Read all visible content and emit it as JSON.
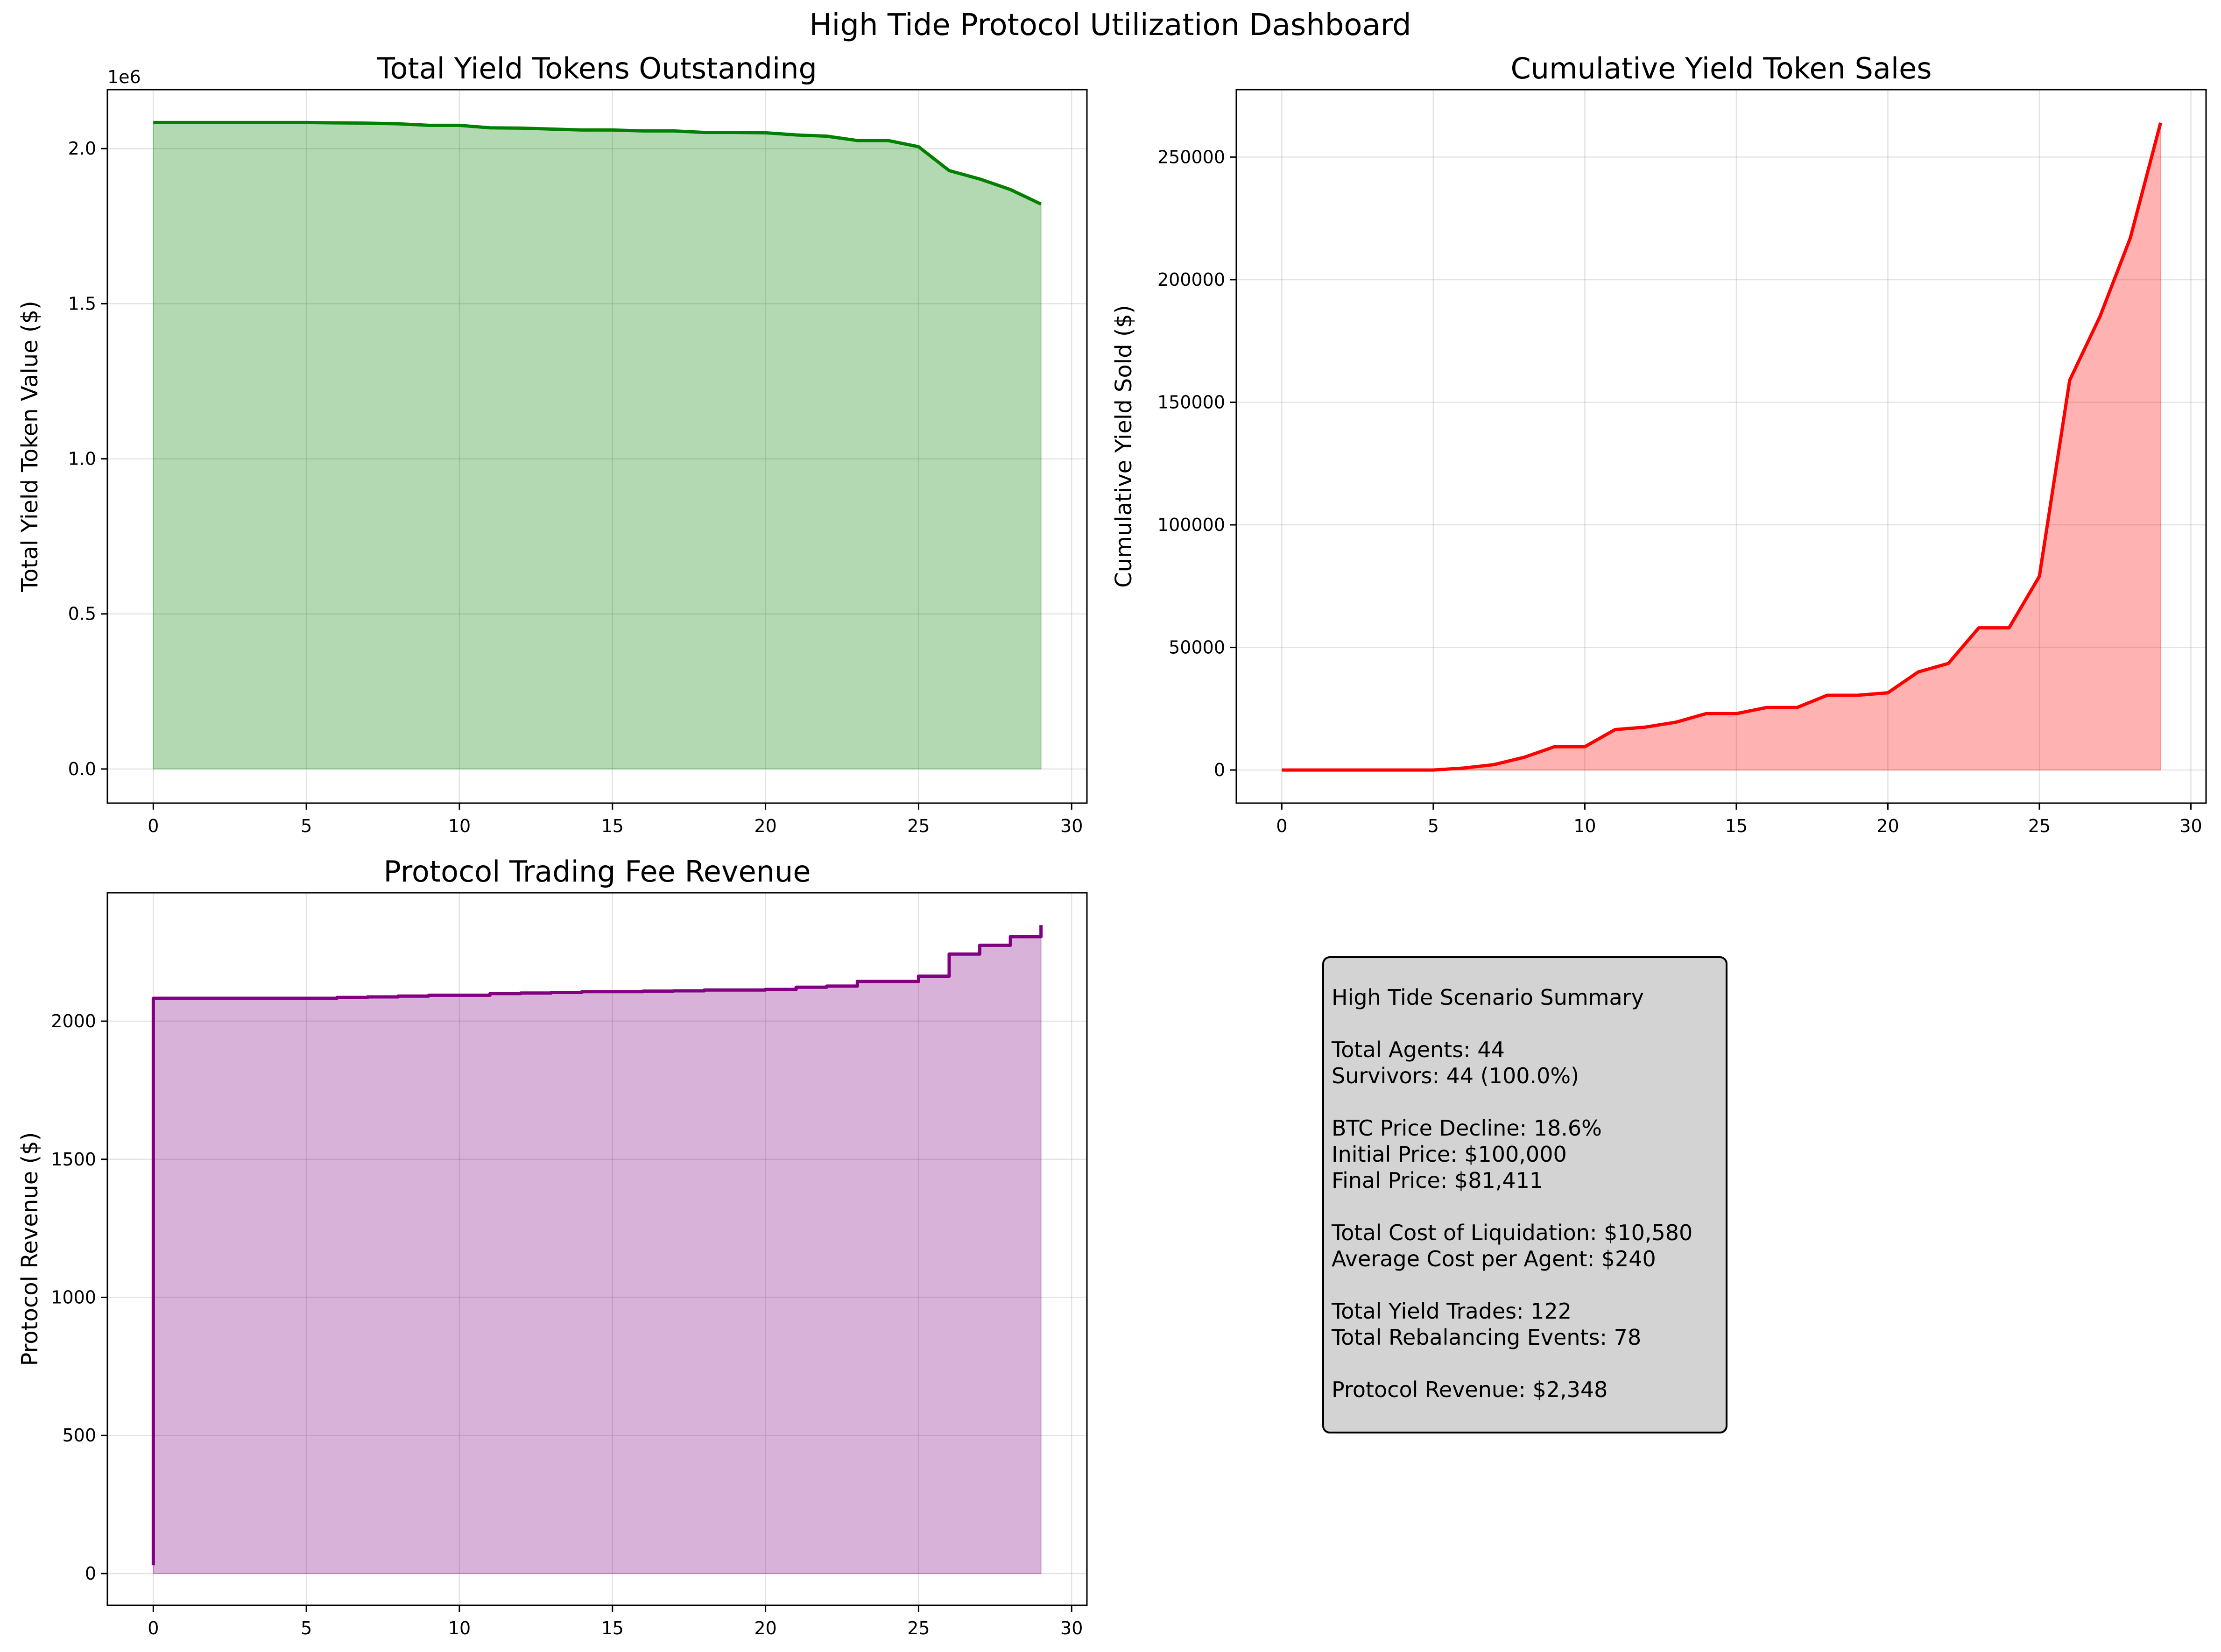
{
  "figure": {
    "suptitle": "High Tide Protocol Utilization Dashboard",
    "colors": {
      "green": "#008000",
      "red": "#ff0000",
      "purple": "#800080",
      "summary_bg": "#d3d3d3"
    }
  },
  "chart_data": [
    {
      "type": "area",
      "title": "Total Yield Tokens Outstanding",
      "xlabel": "",
      "ylabel": "Total Yield Token Value ($)",
      "y_offset_label": "1e6",
      "x": [
        0,
        1,
        2,
        3,
        4,
        5,
        6,
        7,
        8,
        9,
        10,
        11,
        12,
        13,
        14,
        15,
        16,
        17,
        18,
        19,
        20,
        21,
        22,
        23,
        24,
        25,
        26,
        27,
        28,
        29
      ],
      "values": [
        2084000,
        2084000,
        2084000,
        2084000,
        2084000,
        2084000,
        2083000,
        2082000,
        2080000,
        2075000,
        2075000,
        2067000,
        2066000,
        2063000,
        2060000,
        2060000,
        2057000,
        2057000,
        2052000,
        2052000,
        2051000,
        2044000,
        2040000,
        2026000,
        2026000,
        2006000,
        1929000,
        1902000,
        1868000,
        1821000
      ],
      "xlim": [
        -1.5,
        30.5
      ],
      "ylim": [
        -110000,
        2190000
      ],
      "xticks": [
        0,
        5,
        10,
        15,
        20,
        25,
        30
      ],
      "yticks": [
        0,
        500000,
        1000000,
        1500000,
        2000000
      ],
      "ytick_labels": [
        "0.0",
        "0.5",
        "1.0",
        "1.5",
        "2.0"
      ],
      "color": "#008000",
      "grid": true
    },
    {
      "type": "area",
      "title": "Cumulative Yield Token Sales",
      "xlabel": "",
      "ylabel": "Cumulative Yield Sold ($)",
      "x": [
        0,
        1,
        2,
        3,
        4,
        5,
        6,
        7,
        8,
        9,
        10,
        11,
        12,
        13,
        14,
        15,
        16,
        17,
        18,
        19,
        20,
        21,
        22,
        23,
        24,
        25,
        26,
        27,
        28,
        29
      ],
      "values": [
        0,
        0,
        0,
        0,
        0,
        0,
        800,
        2200,
        5200,
        9500,
        9500,
        16500,
        17500,
        19500,
        23000,
        23000,
        25500,
        25500,
        30500,
        30500,
        31500,
        40000,
        43500,
        58000,
        58000,
        79000,
        159000,
        185000,
        217000,
        264000
      ],
      "xlim": [
        -1.5,
        30.5
      ],
      "ylim": [
        -13500,
        277500
      ],
      "xticks": [
        0,
        5,
        10,
        15,
        20,
        25,
        30
      ],
      "yticks": [
        0,
        50000,
        100000,
        150000,
        200000,
        250000
      ],
      "ytick_labels": [
        "0",
        "50000",
        "100000",
        "150000",
        "200000",
        "250000"
      ],
      "color": "#ff0000",
      "grid": true
    },
    {
      "type": "area",
      "title": "Protocol Trading Fee Revenue",
      "xlabel": "",
      "ylabel": "Protocol Revenue ($)",
      "step": "post",
      "x": [
        0,
        0,
        1,
        2,
        3,
        4,
        5,
        6,
        7,
        8,
        9,
        10,
        11,
        12,
        13,
        14,
        15,
        16,
        17,
        18,
        19,
        20,
        21,
        22,
        23,
        24,
        25,
        26,
        27,
        28,
        29,
        29
      ],
      "values": [
        30,
        2083,
        2083,
        2083,
        2083,
        2083,
        2083,
        2086,
        2088,
        2091,
        2094,
        2094,
        2100,
        2102,
        2104,
        2107,
        2107,
        2109,
        2110,
        2113,
        2113,
        2115,
        2123,
        2127,
        2144,
        2144,
        2163,
        2243,
        2275,
        2306,
        2306,
        2348
      ],
      "xlim": [
        -1.5,
        30.5
      ],
      "ylim": [
        -115,
        2465
      ],
      "xticks": [
        0,
        5,
        10,
        15,
        20,
        25,
        30
      ],
      "yticks": [
        0,
        500,
        1000,
        1500,
        2000
      ],
      "ytick_labels": [
        "0",
        "500",
        "1000",
        "1500",
        "2000"
      ],
      "color": "#800080",
      "grid": true
    }
  ],
  "summary": {
    "title": "High Tide Scenario Summary",
    "total_agents": "Total Agents: 44",
    "survivors": "Survivors: 44 (100.0%)",
    "btc_decline": "BTC Price Decline: 18.6%",
    "initial_price": "Initial Price: $100,000",
    "final_price": "Final Price: $81,411",
    "total_cost": "Total Cost of Liquidation: $10,580",
    "avg_cost": "Average Cost per Agent: $240",
    "yield_trades": "Total Yield Trades: 122",
    "rebalancing_events": "Total Rebalancing Events: 78",
    "protocol_revenue": "Protocol Revenue: $2,348"
  }
}
